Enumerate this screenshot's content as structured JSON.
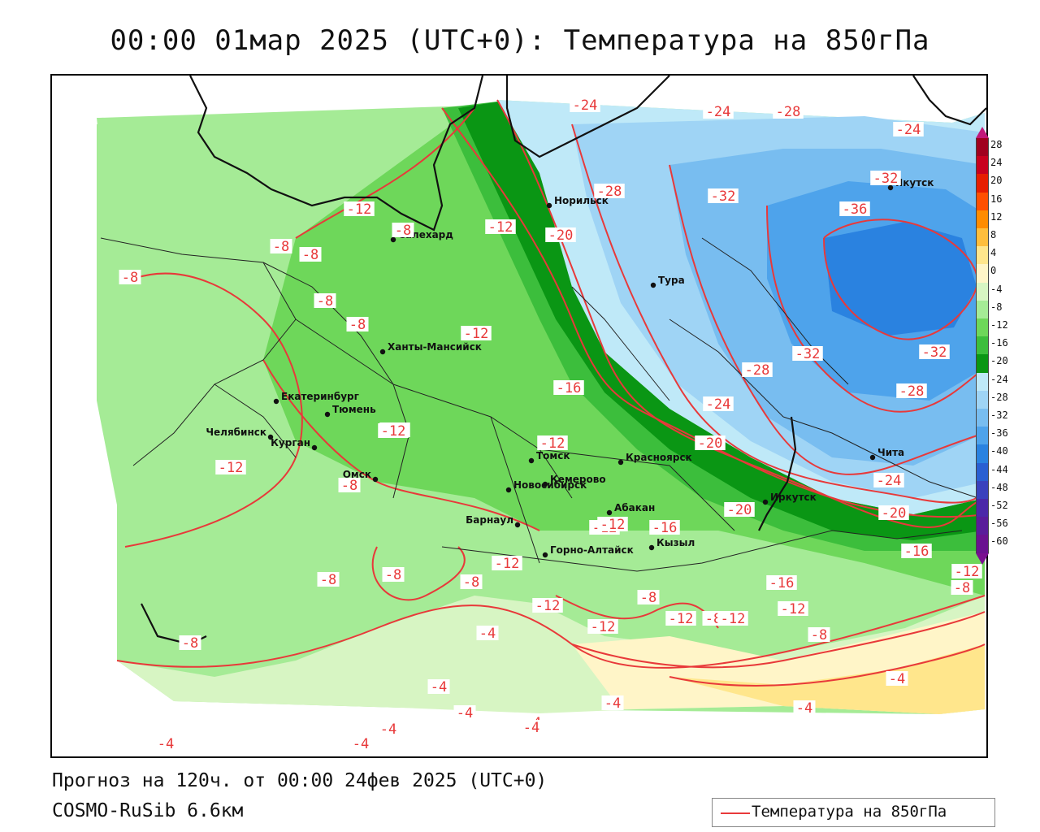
{
  "title": "00:00 01мар 2025 (UTC+0): Температура на 850гПа",
  "footer": {
    "forecast": "Прогноз на 120ч. от 00:00 24фев 2025 (UTC+0)",
    "model": "COSMO-RuSib 6.6км"
  },
  "legend": {
    "label": "Температура на 850гПа",
    "line_color": "#e8393a"
  },
  "colorbar": {
    "labels": [
      "28",
      "24",
      "20",
      "16",
      "12",
      "8",
      "4",
      "0",
      "-4",
      "-8",
      "-12",
      "-16",
      "-20",
      "-24",
      "-28",
      "-32",
      "-36",
      "-40",
      "-44",
      "-48",
      "-52",
      "-56",
      "-60"
    ],
    "colors": [
      "#a0001e",
      "#c8001e",
      "#e61e00",
      "#ff5000",
      "#ff8c00",
      "#ffbe3c",
      "#ffe68c",
      "#fff5c8",
      "#d7f5c3",
      "#a5eb96",
      "#6ed75a",
      "#3cbe3c",
      "#0a9614",
      "#bfe9f8",
      "#9fd4f5",
      "#78bdf0",
      "#4ea3eb",
      "#2a82e0",
      "#2a5fd2",
      "#3a41bd",
      "#4b28a8",
      "#5a1c9a",
      "#6a1290"
    ]
  },
  "cities": [
    {
      "name": "Норильск",
      "symbol": "dot"
    },
    {
      "name": "Якутск",
      "symbol": "dot"
    },
    {
      "name": "Салехард",
      "symbol": "dot"
    },
    {
      "name": "Тура",
      "symbol": "dot"
    },
    {
      "name": "Ханты-Мансийск",
      "symbol": "dot"
    },
    {
      "name": "Екатеринбург",
      "symbol": "dot"
    },
    {
      "name": "Тюмень",
      "symbol": "dot"
    },
    {
      "name": "Челябинск",
      "symbol": "dot"
    },
    {
      "name": "Курган",
      "symbol": "dot"
    },
    {
      "name": "Омск",
      "symbol": "dot"
    },
    {
      "name": "Томск",
      "symbol": "dot"
    },
    {
      "name": "Новосибирск",
      "symbol": "dot"
    },
    {
      "name": "Кемерово",
      "symbol": "dot"
    },
    {
      "name": "Красноярск",
      "symbol": "dot"
    },
    {
      "name": "Абакан",
      "symbol": "dot"
    },
    {
      "name": "Барнаул",
      "symbol": "dot"
    },
    {
      "name": "Горно-Алтайск",
      "symbol": "dot"
    },
    {
      "name": "Кызыл",
      "symbol": "dot"
    },
    {
      "name": "Иркутск",
      "symbol": "dot"
    },
    {
      "name": "Чита",
      "symbol": "dot"
    }
  ],
  "isotherm_labels": [
    "-24",
    "-24",
    "-28",
    "-24",
    "-28",
    "-32",
    "-32",
    "-36",
    "-12",
    "-8",
    "-12",
    "-20",
    "-8",
    "-8",
    "-8",
    "-8",
    "-8",
    "-12",
    "-12",
    "-16",
    "-28",
    "-32",
    "-32",
    "-28",
    "-24",
    "-12",
    "-12",
    "-20",
    "-12",
    "-16",
    "-20",
    "-8",
    "-20",
    "-16",
    "-12",
    "-12",
    "-8",
    "-8",
    "-8",
    "-12",
    "-12",
    "-12",
    "-16",
    "-12",
    "-8",
    "-12",
    "-8",
    "-8",
    "-8",
    "-8",
    "-4",
    "-4",
    "-4",
    "-4",
    "-4",
    "-4",
    "-4",
    "-4",
    "-4",
    "-4",
    "-4",
    "-12",
    "-12",
    "-24"
  ]
}
